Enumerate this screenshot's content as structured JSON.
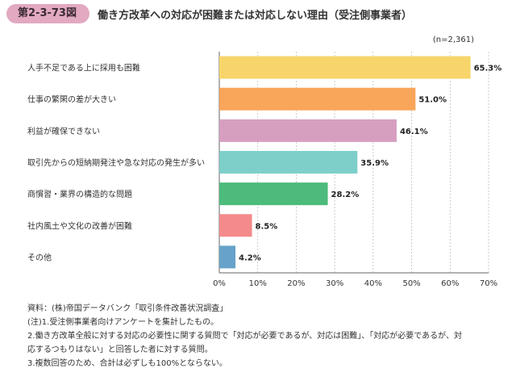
{
  "figure": {
    "number": "第2-3-73図",
    "title": "働き方改革への対応が困難または対応しない理由（受注側事業者）"
  },
  "chart_data": {
    "type": "bar",
    "orientation": "horizontal",
    "sample_size": "(n=2,361)",
    "categories": [
      "人手不足である上に採用も困難",
      "仕事の繁閑の差が大きい",
      "利益が確保できない",
      "取引先からの短納期発注や急な対応の発生が多い",
      "商慣習・業界の構造的な問題",
      "社内風土や文化の改善が困難",
      "その他"
    ],
    "values": [
      65.3,
      51.0,
      46.1,
      35.9,
      28.2,
      8.5,
      4.2
    ],
    "value_labels": [
      "65.3%",
      "51.0%",
      "46.1%",
      "35.9%",
      "28.2%",
      "8.5%",
      "4.2%"
    ],
    "colors": [
      "#f7d56a",
      "#f9a55a",
      "#d69fc0",
      "#7ecfc9",
      "#4cbb7b",
      "#f48a8c",
      "#66a2c9"
    ],
    "xlim": [
      0,
      70
    ],
    "x_ticks": [
      "0%",
      "10%",
      "20%",
      "30%",
      "40%",
      "50%",
      "60%",
      "70%"
    ],
    "grid": true
  },
  "notes": [
    "資料：(株)帝国データバンク「取引条件改善状況調査」",
    "(注)1.受注側事業者向けアンケートを集計したもの。",
    "2.働き方改革全般に対する対応の必要性に関する質問で「対応が必要であるが、対応は困難」、「対応が必要であるが、対",
    "応するつもりはない」と回答した者に対する質問。",
    "3.複数回答のため、合計は必ずしも100%とならない。"
  ]
}
